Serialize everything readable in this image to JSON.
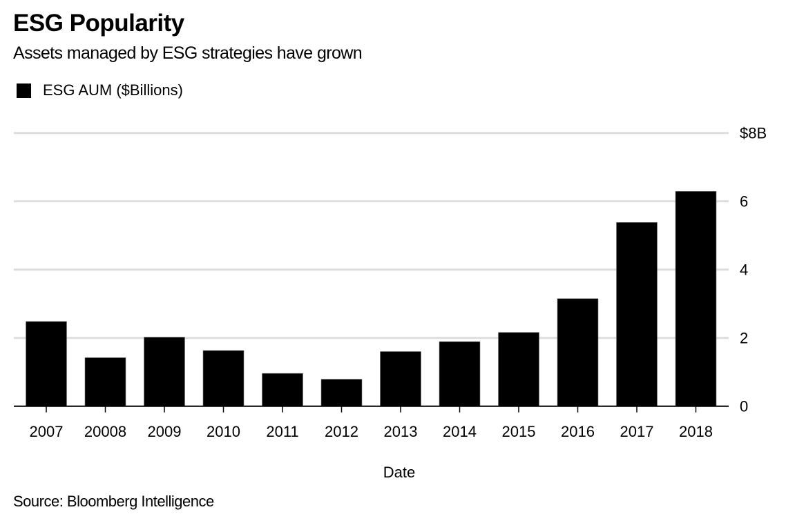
{
  "title": "ESG Popularity",
  "subtitle": "Assets managed by ESG strategies have grown",
  "legend": {
    "label": "ESG AUM ($Billions)",
    "color": "#000000"
  },
  "source": "Source: Bloomberg Intelligence",
  "chart_data": {
    "type": "bar",
    "title": "ESG Popularity",
    "subtitle": "Assets managed by ESG strategies have grown",
    "xlabel": "Date",
    "ylabel": "",
    "categories": [
      "2007",
      "20008",
      "2009",
      "2010",
      "2011",
      "2012",
      "2013",
      "2014",
      "2015",
      "2016",
      "2017",
      "2018"
    ],
    "series": [
      {
        "name": "ESG AUM ($Billions)",
        "color": "#000000",
        "values": [
          2.48,
          1.42,
          2.02,
          1.63,
          0.96,
          0.79,
          1.6,
          1.89,
          2.16,
          3.15,
          5.38,
          6.29
        ]
      }
    ],
    "ylim": [
      0,
      8
    ],
    "yticks": [
      0,
      2,
      4,
      6,
      8
    ],
    "ytick_labels": [
      "0",
      "2",
      "4",
      "6",
      "$8B"
    ],
    "y_axis_side": "right",
    "grid": true,
    "grid_color": "#dddddd",
    "legend_position": "top-left"
  }
}
